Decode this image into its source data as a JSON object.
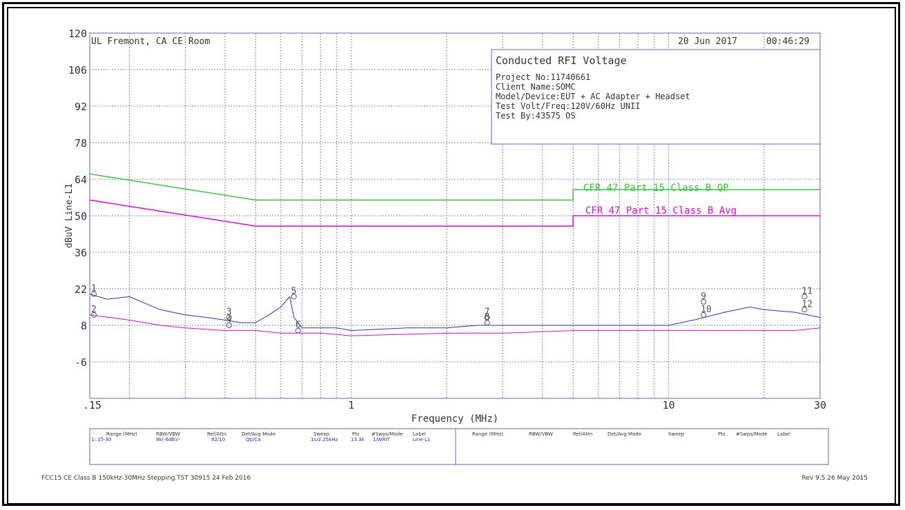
{
  "header": {
    "site": "UL Fremont, CA CE Room",
    "date": "20 Jun 2017",
    "time": "00:46:29"
  },
  "info_box": {
    "title": "Conducted RFI Voltage",
    "lines": [
      "Project No:11740661",
      "Client Name:SOMC",
      "Model/Device:EUT + AC Adapter + Headset",
      "Test Volt/Freq:120V/60Hz UNII",
      "Test By:43575 OS"
    ]
  },
  "footer": {
    "left": "FCC15 CE Class B 150kHz-30MHz Stepping.TST 30915 24 Feb 2016",
    "right": "Rev 9.5 26 May 2015"
  },
  "settings_table": {
    "headers": [
      "Range (MHz)",
      "RBW/VBW",
      "Ref/Attn",
      "Det/Avg Mode",
      "Sweep",
      "Pts",
      "#Swps/Mode",
      "Label"
    ],
    "row": [
      "1:.15-30",
      "9k(-6dB)/-",
      "82/10",
      "Qp/Ca",
      ".1s/2.25kHz",
      "13.3k",
      "1/WRIT",
      "Line-L1"
    ]
  },
  "chart_data": {
    "type": "line",
    "xlabel": "Frequency (MHz)",
    "ylabel": "dBuV Line-L1",
    "x_scale": "log",
    "xlim": [
      0.15,
      30
    ],
    "ylim": [
      -20,
      120
    ],
    "y_ticks": [
      "120",
      "106",
      "92",
      "78",
      "64",
      "50",
      "36",
      "22",
      "8",
      "-6"
    ],
    "x_tick_labels": [
      {
        "value": 0.15,
        "label": ".15"
      },
      {
        "value": 1,
        "label": "1"
      },
      {
        "value": 10,
        "label": "10"
      },
      {
        "value": 30,
        "label": "30"
      }
    ],
    "grid": true,
    "limit_lines": [
      {
        "name": "CFR 47 Part 15 Class B QP",
        "color": "#33cc33",
        "points": [
          [
            0.15,
            66
          ],
          [
            0.5,
            56
          ],
          [
            5,
            56
          ],
          [
            5,
            60
          ],
          [
            30,
            60
          ]
        ]
      },
      {
        "name": "CFR 47 Part 15 Class B Avg",
        "color": "#ee00ee",
        "points": [
          [
            0.15,
            56
          ],
          [
            0.5,
            46
          ],
          [
            5,
            46
          ],
          [
            5,
            50
          ],
          [
            30,
            50
          ]
        ]
      }
    ],
    "series": [
      {
        "color": "#2a2ad0",
        "points": [
          [
            0.15,
            20
          ],
          [
            0.17,
            18
          ],
          [
            0.2,
            19
          ],
          [
            0.25,
            14
          ],
          [
            0.3,
            12
          ],
          [
            0.35,
            11
          ],
          [
            0.4,
            10
          ],
          [
            0.45,
            9
          ],
          [
            0.5,
            9
          ],
          [
            0.55,
            12
          ],
          [
            0.6,
            15
          ],
          [
            0.64,
            19
          ],
          [
            0.66,
            11
          ],
          [
            0.7,
            7
          ],
          [
            0.9,
            7
          ],
          [
            1,
            6
          ],
          [
            1.5,
            7
          ],
          [
            2,
            7
          ],
          [
            2.5,
            8
          ],
          [
            3,
            8
          ],
          [
            4,
            8
          ],
          [
            5,
            8
          ],
          [
            7,
            8
          ],
          [
            10,
            8
          ],
          [
            12,
            10
          ],
          [
            15,
            13
          ],
          [
            18,
            15
          ],
          [
            20,
            14
          ],
          [
            25,
            13
          ],
          [
            30,
            11
          ]
        ]
      },
      {
        "color": "#ee00ee",
        "points": [
          [
            0.15,
            12
          ],
          [
            0.2,
            10
          ],
          [
            0.25,
            8
          ],
          [
            0.3,
            7
          ],
          [
            0.4,
            6
          ],
          [
            0.5,
            6
          ],
          [
            0.6,
            5
          ],
          [
            0.8,
            5
          ],
          [
            1,
            4
          ],
          [
            2,
            5
          ],
          [
            3,
            5
          ],
          [
            5,
            6
          ],
          [
            10,
            6
          ],
          [
            15,
            6
          ],
          [
            20,
            6
          ],
          [
            25,
            6
          ],
          [
            30,
            7
          ]
        ]
      }
    ],
    "markers": [
      {
        "label": "1",
        "x": 0.15,
        "y": 20
      },
      {
        "label": "2",
        "x": 0.15,
        "y": 12
      },
      {
        "label": "3",
        "x": 0.4,
        "y": 11
      },
      {
        "label": "4",
        "x": 0.4,
        "y": 8
      },
      {
        "label": "5",
        "x": 0.64,
        "y": 19
      },
      {
        "label": "6",
        "x": 0.66,
        "y": 6
      },
      {
        "label": "7",
        "x": 2.6,
        "y": 11
      },
      {
        "label": "8",
        "x": 2.6,
        "y": 9
      },
      {
        "label": "9",
        "x": 12.5,
        "y": 17
      },
      {
        "label": "10",
        "x": 12.5,
        "y": 12
      },
      {
        "label": "11",
        "x": 26,
        "y": 19
      },
      {
        "label": "12",
        "x": 26,
        "y": 14
      }
    ]
  }
}
